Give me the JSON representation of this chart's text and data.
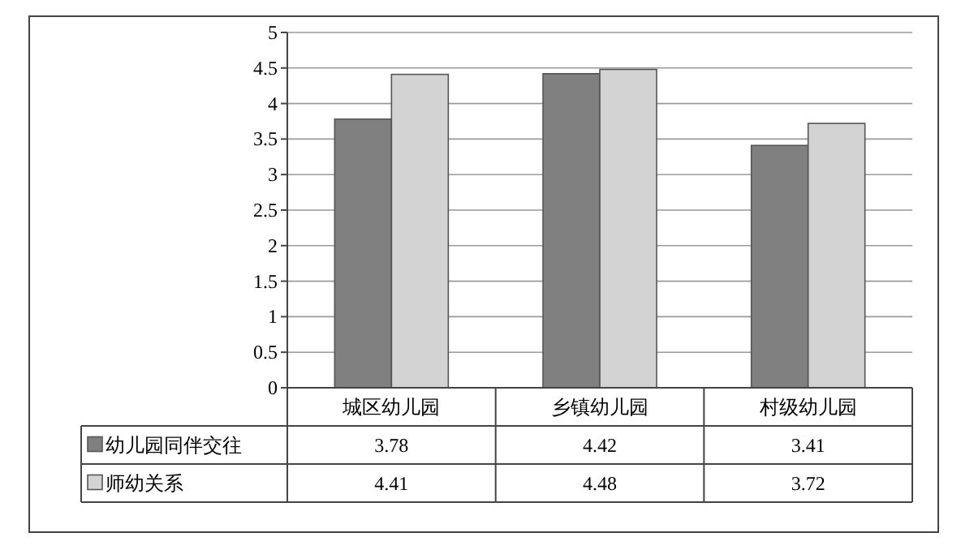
{
  "chart_data": {
    "type": "bar",
    "categories": [
      "城区幼儿园",
      "乡镇幼儿园",
      "村级幼儿园"
    ],
    "series": [
      {
        "name": "幼儿园同伴交往",
        "color": "#808080",
        "values": [
          3.78,
          4.42,
          3.41
        ]
      },
      {
        "name": "师幼关系",
        "color": "#d3d3d3",
        "values": [
          4.41,
          4.48,
          3.72
        ]
      }
    ],
    "ylim": [
      0,
      5
    ],
    "yticks": [
      0,
      0.5,
      1,
      1.5,
      2,
      2.5,
      3,
      3.5,
      4,
      4.5,
      5
    ],
    "grid": "y",
    "data_labels": true,
    "legend": "bottom"
  }
}
